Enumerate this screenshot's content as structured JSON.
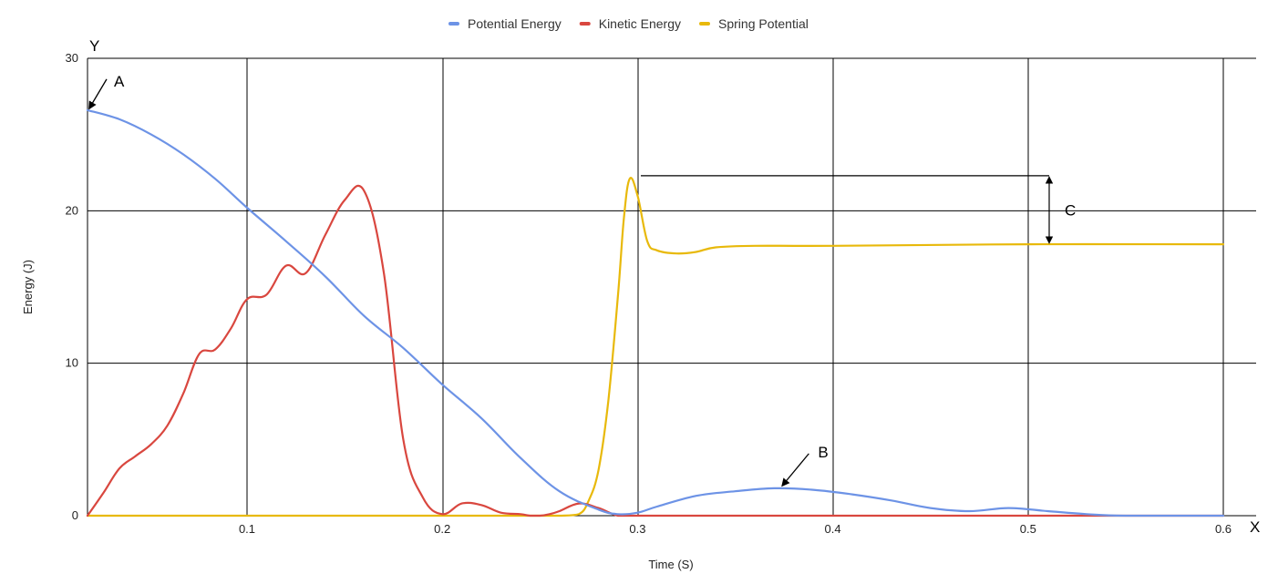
{
  "chart_data": {
    "type": "line",
    "xlabel": "Time (S)",
    "ylabel": "Energy (J)",
    "xlim": [
      0,
      0.6
    ],
    "ylim": [
      0,
      30
    ],
    "xticks": [
      "0.1",
      "0.2",
      "0.3",
      "0.4",
      "0.5",
      "0.6"
    ],
    "yticks": [
      "0",
      "10",
      "20",
      "30"
    ],
    "grid": true,
    "legend_position": "top-center",
    "series": [
      {
        "name": "Potential Energy",
        "color": "#6d93e6",
        "x": [
          0.0,
          0.02,
          0.04,
          0.06,
          0.08,
          0.1,
          0.12,
          0.14,
          0.16,
          0.18,
          0.2,
          0.22,
          0.24,
          0.26,
          0.28,
          0.29,
          0.3,
          0.31,
          0.33,
          0.35,
          0.37,
          0.39,
          0.41,
          0.43,
          0.45,
          0.47,
          0.49,
          0.51,
          0.53,
          0.55,
          0.6
        ],
        "y": [
          26.6,
          26.0,
          25.0,
          23.7,
          22.1,
          20.2,
          18.0,
          15.7,
          13.1,
          11.0,
          8.6,
          6.4,
          3.8,
          1.6,
          0.4,
          0.1,
          0.2,
          0.6,
          1.3,
          1.6,
          1.8,
          1.7,
          1.4,
          1.0,
          0.5,
          0.3,
          0.5,
          0.3,
          0.1,
          0.0,
          0.0
        ]
      },
      {
        "name": "Kinetic Energy",
        "color": "#d9473f",
        "x": [
          0.0,
          0.01,
          0.02,
          0.03,
          0.04,
          0.05,
          0.06,
          0.07,
          0.08,
          0.09,
          0.1,
          0.11,
          0.12,
          0.13,
          0.14,
          0.15,
          0.16,
          0.17,
          0.18,
          0.19,
          0.2,
          0.21,
          0.22,
          0.23,
          0.24,
          0.245,
          0.25,
          0.255,
          0.26,
          0.27,
          0.28,
          0.29,
          0.3,
          0.305,
          0.31,
          0.32,
          0.34,
          0.36,
          0.38,
          0.4,
          0.42,
          0.44,
          0.46,
          0.48,
          0.5,
          0.55,
          0.6
        ],
        "y": [
          0.0,
          1.5,
          3.1,
          3.9,
          4.7,
          5.9,
          8.0,
          10.6,
          10.9,
          12.3,
          14.2,
          14.5,
          16.4,
          15.9,
          18.4,
          20.7,
          21.3,
          16.0,
          5.0,
          1.2,
          0.1,
          0.8,
          0.7,
          0.2,
          0.1,
          0.0,
          0.0,
          0.1,
          0.3,
          0.8,
          0.5,
          0.0,
          0.0,
          0.0,
          0.0,
          0.0,
          0.0,
          0.0,
          0.0,
          0.0,
          0.0,
          0.0,
          0.0,
          0.0,
          0.0,
          0.0,
          0.0
        ]
      },
      {
        "name": "Spring Potential",
        "color": "#e8b90b",
        "x": [
          0.0,
          0.05,
          0.1,
          0.15,
          0.2,
          0.23,
          0.25,
          0.26,
          0.27,
          0.275,
          0.28,
          0.285,
          0.29,
          0.293,
          0.296,
          0.3,
          0.305,
          0.31,
          0.32,
          0.33,
          0.34,
          0.36,
          0.4,
          0.5,
          0.6
        ],
        "y": [
          0.0,
          0.0,
          0.0,
          0.0,
          0.0,
          0.0,
          0.0,
          0.0,
          0.1,
          1.0,
          3.0,
          7.5,
          14.5,
          19.5,
          22.1,
          21.0,
          18.0,
          17.4,
          17.2,
          17.3,
          17.6,
          17.7,
          17.7,
          17.8,
          17.8
        ]
      }
    ],
    "annotations": [
      {
        "label": "A",
        "x": 0.0,
        "y": 26.6
      },
      {
        "label": "B",
        "x": 0.37,
        "y": 1.8
      },
      {
        "label": "C",
        "from_y": 22.3,
        "to_y": 17.8,
        "x": 0.49
      }
    ],
    "axis_letters": {
      "x": "X",
      "y": "Y"
    }
  }
}
